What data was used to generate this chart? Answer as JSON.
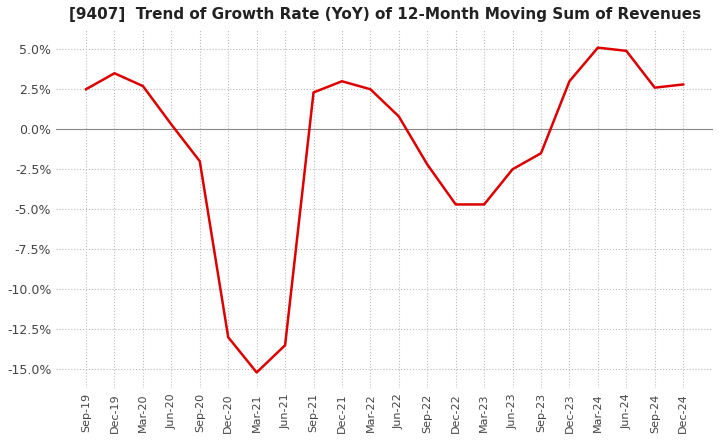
{
  "title": "[9407]  Trend of Growth Rate (YoY) of 12-Month Moving Sum of Revenues",
  "title_fontsize": 11,
  "line_color": "#dd0000",
  "background_color": "#ffffff",
  "grid_color": "#bbbbbb",
  "ylim": [
    -16.2,
    6.2
  ],
  "yticks": [
    5.0,
    2.5,
    0.0,
    -2.5,
    -5.0,
    -7.5,
    -10.0,
    -12.5,
    -15.0
  ],
  "x_labels": [
    "Sep-19",
    "Dec-19",
    "Mar-20",
    "Jun-20",
    "Sep-20",
    "Dec-20",
    "Mar-21",
    "Jun-21",
    "Sep-21",
    "Dec-21",
    "Mar-22",
    "Jun-22",
    "Sep-22",
    "Dec-22",
    "Mar-23",
    "Jun-23",
    "Sep-23",
    "Dec-23",
    "Mar-24",
    "Jun-24",
    "Sep-24",
    "Dec-24"
  ],
  "y_values": [
    2.5,
    3.5,
    2.7,
    0.3,
    -2.0,
    -13.0,
    -15.2,
    -13.5,
    2.3,
    3.0,
    2.5,
    0.8,
    -2.2,
    -4.7,
    -4.7,
    -2.5,
    -1.5,
    3.0,
    5.1,
    4.9,
    2.6,
    2.8
  ]
}
